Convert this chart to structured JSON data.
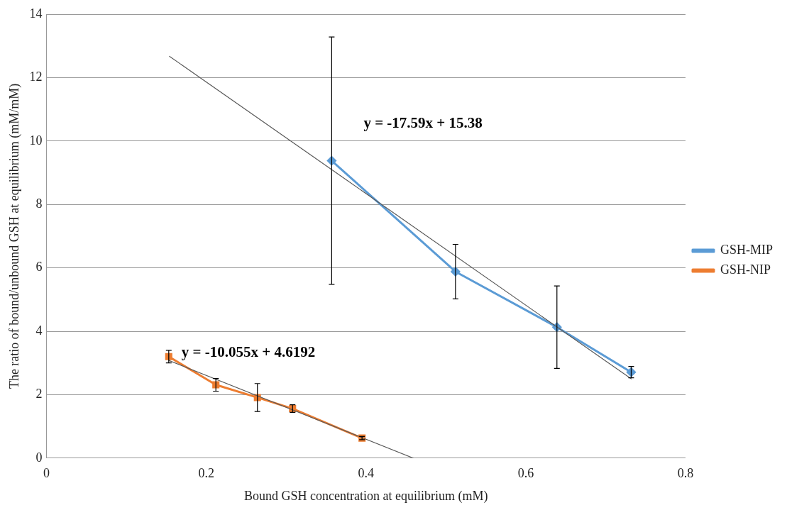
{
  "chart_data": {
    "type": "line",
    "xlabel": "Bound GSH concentration at equilibrium (mM)",
    "ylabel": "The ratio of bound/unbound GSH at equilibrium (mM/mM)",
    "xlim": [
      0,
      0.8
    ],
    "xticks": [
      0,
      0.2,
      0.4,
      0.6,
      0.8
    ],
    "ylim": [
      0,
      14
    ],
    "yticks": [
      0,
      2,
      4,
      6,
      8,
      10,
      12,
      14
    ],
    "grid": "y",
    "legend": "right",
    "series": [
      {
        "name": "GSH-MIP",
        "color": "#5b9bd5",
        "marker": "diamond",
        "x": [
          0.357,
          0.512,
          0.639,
          0.732
        ],
        "values": [
          9.38,
          5.88,
          4.13,
          2.71
        ],
        "errors": [
          3.9,
          0.86,
          1.3,
          0.18
        ]
      },
      {
        "name": "GSH-NIP",
        "color": "#ed7d31",
        "marker": "square",
        "x": [
          0.153,
          0.212,
          0.264,
          0.308,
          0.395
        ],
        "values": [
          3.2,
          2.31,
          1.91,
          1.56,
          0.63
        ],
        "errors": [
          0.2,
          0.2,
          0.44,
          0.12,
          0.05
        ]
      },
      {
        "type": "line",
        "color": "#595959",
        "marker": "none",
        "x": [
          0.154,
          0.732
        ],
        "values": [
          12.67,
          2.5
        ]
      },
      {
        "type": "line",
        "color": "#595959",
        "marker": "none",
        "x": [
          0.153,
          0.459
        ],
        "values": [
          3.08,
          0
        ]
      }
    ],
    "annotations": [
      "y = -17.59x + 15.38",
      "y = -10.055x + 4.6192"
    ]
  }
}
